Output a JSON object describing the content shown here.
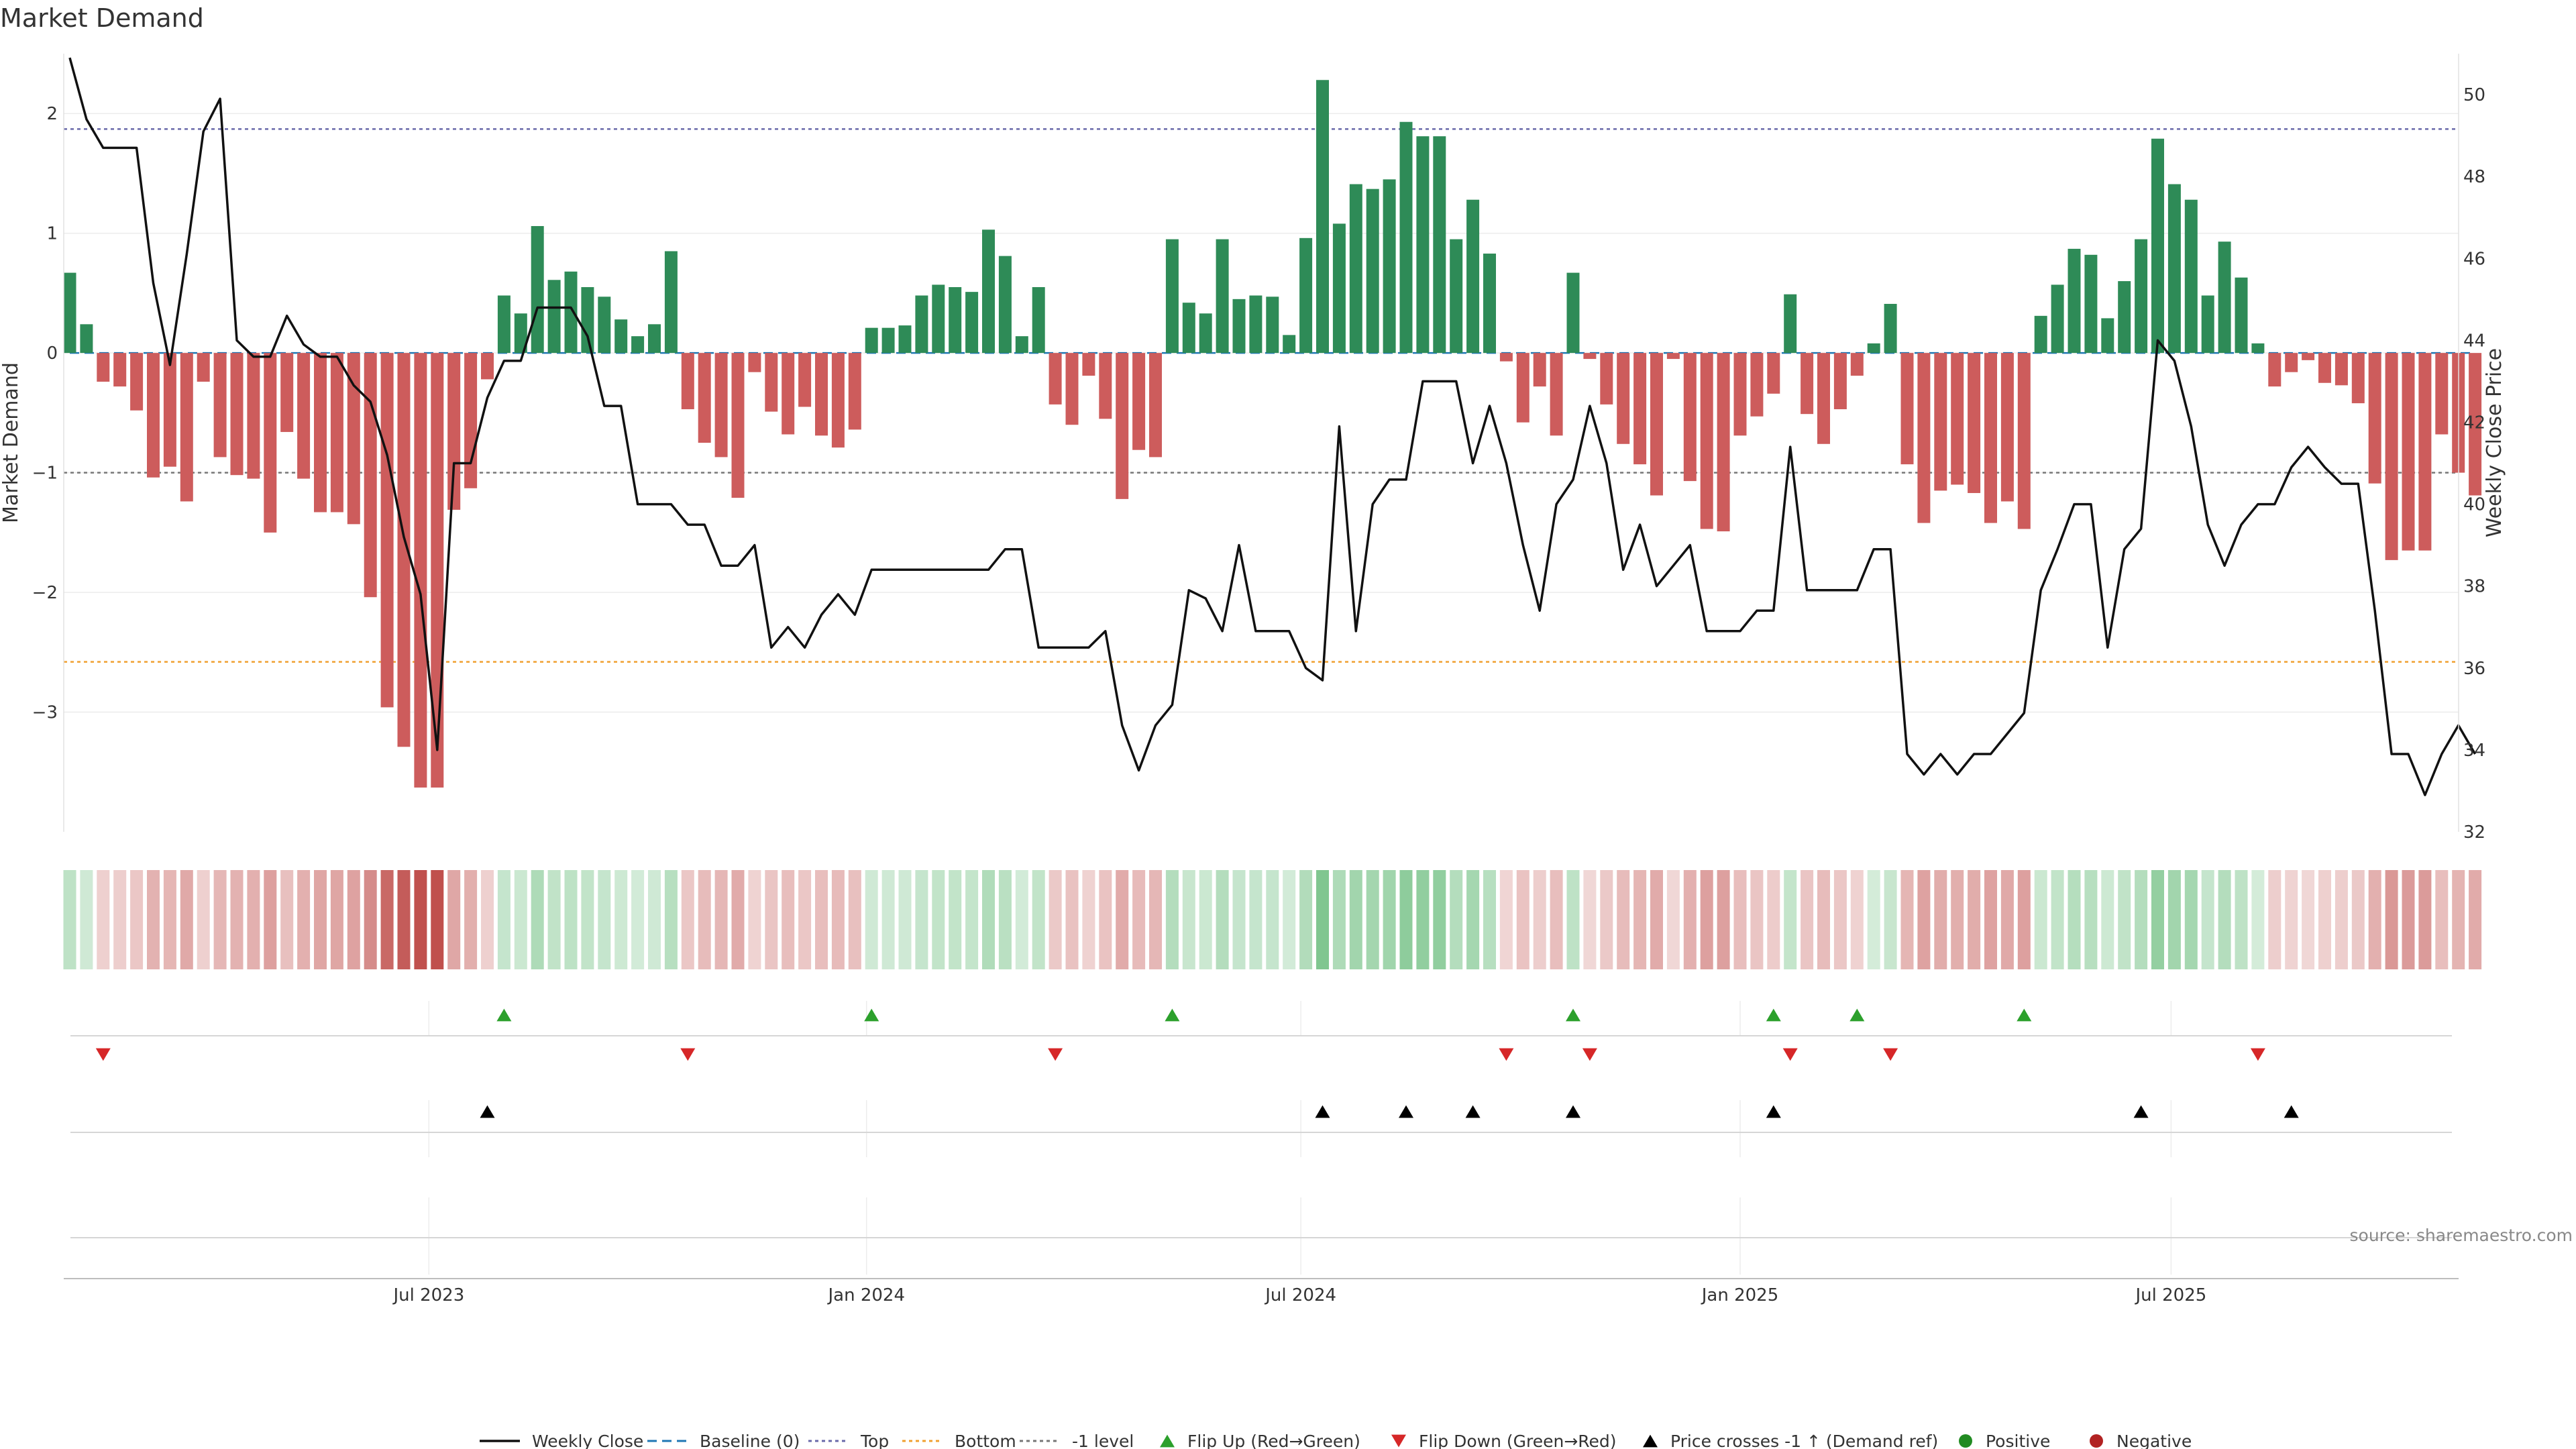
{
  "chart_data": {
    "type": "bar",
    "title": "Market Demand",
    "ylabel_left": "Market Demand",
    "ylabel_right": "Weekly Close Price",
    "source": "source: sharemaestro.com",
    "ylim_demand": [
      -4.0,
      2.5
    ],
    "ylim_price": [
      32,
      51
    ],
    "demand_ticks": [
      2,
      1,
      0,
      -1,
      -2,
      -3
    ],
    "demand_tick_labels": [
      "2",
      "1",
      "0",
      "−1",
      "−2",
      "−3"
    ],
    "price_ticks": [
      50,
      48,
      46,
      44,
      42,
      40,
      38,
      36,
      34,
      32
    ],
    "price_tick_labels": [
      "50",
      "48",
      "46",
      "44",
      "42",
      "40",
      "38",
      "36",
      "34",
      "32"
    ],
    "x_ticks": [
      {
        "index": 21.5,
        "label": "Jul 2023"
      },
      {
        "index": 47.7,
        "label": "Jan 2024"
      },
      {
        "index": 73.7,
        "label": "Jul 2024"
      },
      {
        "index": 100,
        "label": "Jan 2025"
      },
      {
        "index": 125.8,
        "label": "Jul 2025"
      }
    ],
    "levels": {
      "top": 1.87,
      "bottom": -2.58,
      "minus_one": -1.0,
      "baseline": 0
    },
    "colors": {
      "positive": "#2e8b57",
      "negative": "#cd5c5c",
      "price": "#111111",
      "top": "#6a6aaa",
      "bottom": "#f0a030",
      "minus_one": "#777777",
      "baseline": "#1f77b4",
      "flip_up": "#2ca02c",
      "flip_down": "#d62728",
      "cross": "#000000",
      "pos_dot": "#228b22",
      "neg_dot": "#b22222"
    },
    "demand": [
      0.67,
      0.24,
      -0.24,
      -0.28,
      -0.48,
      -1.04,
      -0.95,
      -1.24,
      -0.24,
      -0.87,
      -1.02,
      -1.05,
      -1.5,
      -0.66,
      -1.05,
      -1.33,
      -1.33,
      -1.43,
      -2.04,
      -2.96,
      -3.29,
      -3.63,
      -3.63,
      -1.31,
      -1.13,
      -0.22,
      0.48,
      0.33,
      1.06,
      0.61,
      0.68,
      0.55,
      0.47,
      0.28,
      0.14,
      0.24,
      0.85,
      -0.47,
      -0.75,
      -0.87,
      -1.21,
      -0.16,
      -0.49,
      -0.68,
      -0.45,
      -0.69,
      -0.79,
      -0.64,
      0.21,
      0.21,
      0.23,
      0.48,
      0.57,
      0.55,
      0.51,
      1.03,
      0.81,
      0.14,
      0.55,
      -0.43,
      -0.6,
      -0.19,
      -0.55,
      -1.22,
      -0.81,
      -0.87,
      0.95,
      0.42,
      0.33,
      0.95,
      0.45,
      0.48,
      0.47,
      0.15,
      0.96,
      2.28,
      1.08,
      1.41,
      1.37,
      1.45,
      1.93,
      1.81,
      1.81,
      0.95,
      1.28,
      0.83,
      -0.07,
      -0.58,
      -0.28,
      -0.69,
      0.67,
      -0.05,
      -0.43,
      -0.76,
      -0.93,
      -1.19,
      -0.05,
      -1.07,
      -1.47,
      -1.49,
      -0.69,
      -0.53,
      -0.34,
      0.49,
      -0.51,
      -0.76,
      -0.47,
      -0.19,
      0.08,
      0.41,
      -0.93,
      -1.42,
      -1.15,
      -1.1,
      -1.17,
      -1.42,
      -1.24,
      -1.47,
      0.31,
      0.57,
      0.87,
      0.82,
      0.29,
      0.6,
      0.95,
      1.79,
      1.41,
      1.28,
      0.48,
      0.93,
      0.63,
      0.08,
      -0.28,
      -0.16,
      -0.06,
      -0.25,
      -0.27,
      -0.42,
      -1.09,
      -1.73,
      -1.65,
      -1.65,
      -0.68,
      -1.0,
      -1.19
    ],
    "price": [
      50.9,
      49.4,
      48.7,
      48.7,
      48.7,
      45.4,
      43.4,
      46.1,
      49.1,
      49.9,
      44.0,
      43.6,
      43.6,
      44.6,
      43.9,
      43.6,
      43.6,
      42.9,
      42.5,
      41.2,
      39.2,
      37.8,
      34.0,
      41.0,
      41.0,
      42.6,
      43.5,
      43.5,
      44.8,
      44.8,
      44.8,
      44.1,
      42.4,
      42.4,
      40.0,
      40.0,
      40.0,
      39.5,
      39.5,
      38.5,
      38.5,
      39.0,
      36.5,
      37.0,
      36.5,
      37.3,
      37.8,
      37.3,
      38.4,
      38.4,
      38.4,
      38.4,
      38.4,
      38.4,
      38.4,
      38.4,
      38.9,
      38.9,
      36.5,
      36.5,
      36.5,
      36.5,
      36.9,
      34.6,
      33.5,
      34.6,
      35.1,
      37.9,
      37.7,
      36.9,
      39.0,
      36.9,
      36.9,
      36.9,
      36.0,
      35.7,
      41.9,
      36.9,
      40.0,
      40.6,
      40.6,
      43.0,
      43.0,
      43.0,
      41.0,
      42.4,
      41.0,
      39.0,
      37.4,
      40.0,
      40.6,
      42.4,
      41.0,
      38.4,
      39.5,
      38.0,
      38.5,
      39.0,
      36.9,
      36.9,
      36.9,
      37.4,
      37.4,
      41.4,
      37.9,
      37.9,
      37.9,
      37.9,
      38.9,
      38.9,
      33.9,
      33.4,
      33.9,
      33.4,
      33.9,
      33.9,
      34.4,
      34.9,
      37.9,
      38.9,
      40.0,
      40.0,
      36.5,
      38.9,
      39.4,
      44.0,
      43.5,
      41.9,
      39.5,
      38.5,
      39.5,
      40.0,
      40.0,
      40.9,
      41.4,
      40.9,
      40.5,
      40.5,
      37.4,
      33.9,
      33.9,
      32.9,
      33.9,
      34.6,
      33.9
    ],
    "flip_up_idx": [
      26,
      48,
      66,
      90,
      102,
      107,
      117
    ],
    "flip_down_idx": [
      2,
      37,
      59,
      86,
      91,
      103,
      109,
      131
    ],
    "cross_up_idx": [
      25,
      75,
      80,
      84,
      90,
      102,
      124,
      133
    ],
    "legend": [
      {
        "key": "close",
        "label": "Weekly Close"
      },
      {
        "key": "baseline",
        "label": "Baseline (0)"
      },
      {
        "key": "top",
        "label": "Top"
      },
      {
        "key": "bottom",
        "label": "Bottom"
      },
      {
        "key": "minus1",
        "label": "-1 level"
      },
      {
        "key": "flipup",
        "label": "Flip Up (Red→Green)"
      },
      {
        "key": "flipdown",
        "label": "Flip Down (Green→Red)"
      },
      {
        "key": "cross",
        "label": "Price crosses -1 ↑ (Demand ref)"
      },
      {
        "key": "positive",
        "label": "Positive"
      },
      {
        "key": "negative",
        "label": "Negative"
      }
    ]
  }
}
